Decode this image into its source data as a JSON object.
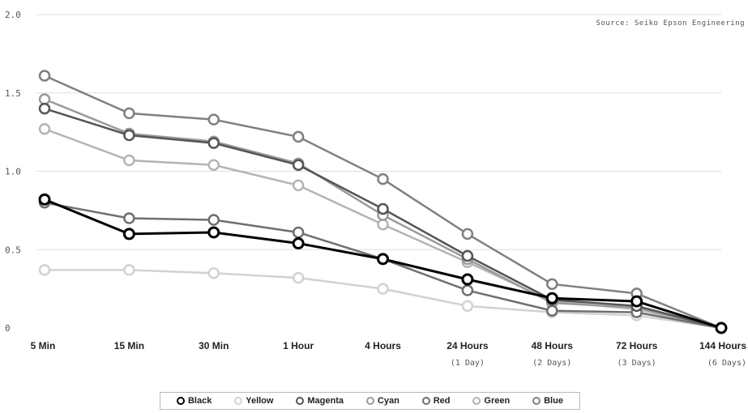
{
  "source": "Source: Seiko Epson Engineering",
  "chart_data": {
    "type": "line",
    "categories": [
      "5 Min",
      "15 Min",
      "30 Min",
      "1 Hour",
      "4 Hours",
      "24 Hours",
      "48 Hours",
      "72 Hours",
      "144 Hours"
    ],
    "category_sublabels": [
      "",
      "",
      "",
      "",
      "",
      "(1 Day)",
      "(2 Days)",
      "(3 Days)",
      "(6 Days)"
    ],
    "ylim": [
      0,
      2.0
    ],
    "yticks": [
      "0",
      "0.5",
      "1.0",
      "1.5",
      "2.0"
    ],
    "grid": true,
    "legend_position": "bottom",
    "series": [
      {
        "name": "Black",
        "color": "#000000",
        "values": [
          0.82,
          0.6,
          0.61,
          0.54,
          0.44,
          0.31,
          0.19,
          0.17,
          0.0
        ]
      },
      {
        "name": "Yellow",
        "color": "#d2d2d2",
        "values": [
          0.37,
          0.37,
          0.35,
          0.32,
          0.25,
          0.14,
          0.1,
          0.08,
          0.0
        ]
      },
      {
        "name": "Magenta",
        "color": "#555555",
        "values": [
          1.4,
          1.23,
          1.18,
          1.04,
          0.76,
          0.46,
          0.18,
          0.14,
          0.0
        ]
      },
      {
        "name": "Cyan",
        "color": "#9a9a9a",
        "values": [
          1.46,
          1.24,
          1.19,
          1.05,
          0.72,
          0.44,
          0.16,
          0.13,
          0.0
        ]
      },
      {
        "name": "Red",
        "color": "#6f6f6f",
        "values": [
          0.8,
          0.7,
          0.69,
          0.61,
          0.44,
          0.24,
          0.11,
          0.1,
          0.0
        ]
      },
      {
        "name": "Green",
        "color": "#b4b4b4",
        "values": [
          1.27,
          1.07,
          1.04,
          0.91,
          0.66,
          0.42,
          0.17,
          0.12,
          0.0
        ]
      },
      {
        "name": "Blue",
        "color": "#808080",
        "values": [
          1.61,
          1.37,
          1.33,
          1.22,
          0.95,
          0.6,
          0.28,
          0.22,
          0.0
        ]
      }
    ]
  }
}
